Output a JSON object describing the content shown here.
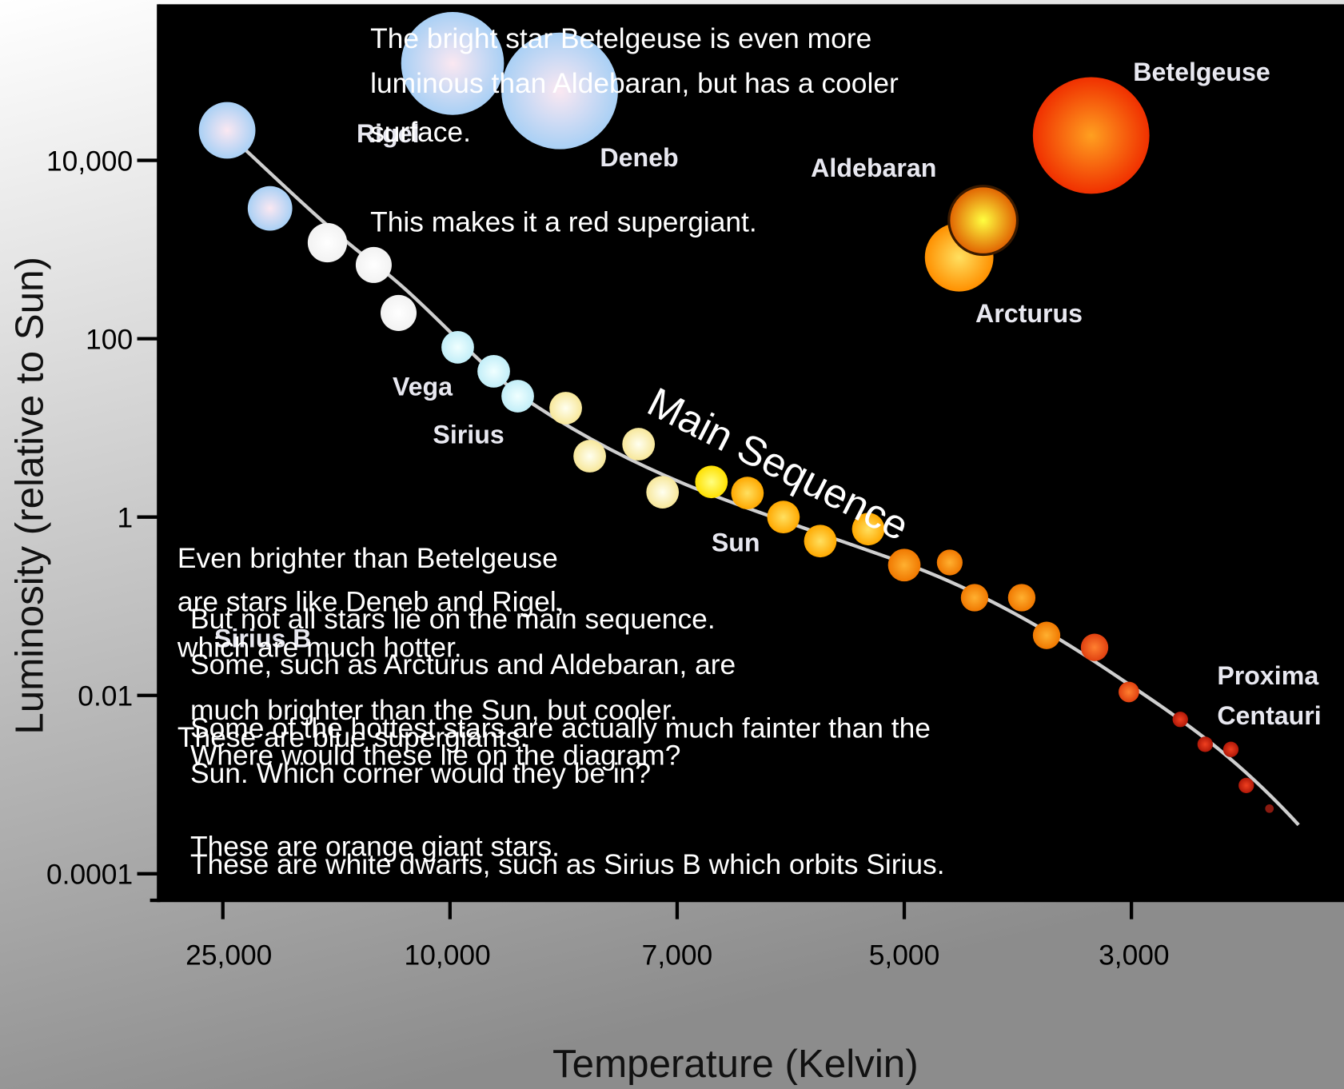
{
  "axes": {
    "y_title": "Luminosity (relative to Sun)",
    "y_ticks": [
      "10,000",
      "100",
      "1",
      "0.01",
      "0.0001"
    ],
    "x_title": "Temperature (Kelvin)",
    "x_ticks": [
      "25,000",
      "10,000",
      "7,000",
      "5,000",
      "3,000"
    ]
  },
  "main_sequence_label": "Main Sequence",
  "star_labels": [
    "Rigel",
    "Deneb",
    "Aldebaran",
    "Betelgeuse",
    "Arcturus",
    "Vega",
    "Sirius",
    "Sun",
    "Sirius B",
    "Proxima",
    "Centauri"
  ],
  "text_boxes": [
    [
      "The bright star Betelgeuse is even more",
      "luminous than Aldebaran, but has a cooler",
      "surface.",
      "This makes it a red supergiant."
    ],
    [
      "Even brighter than Betelgeuse",
      "are stars like Deneb and Rigel,",
      "which are much hotter.",
      "These are blue supergiants."
    ],
    [
      "But not all stars lie on the main sequence.",
      "Some, such as Arcturus and Aldebaran, are",
      "much brighter than the Sun, but cooler.",
      "Where would these lie on the diagram?",
      "These are orange giant stars."
    ],
    [
      "Some of the hottest stars are actually much fainter than the",
      "Sun. Which corner would they be in?",
      "These are white dwarfs, such as Sirius B which orbits Sirius."
    ]
  ]
}
